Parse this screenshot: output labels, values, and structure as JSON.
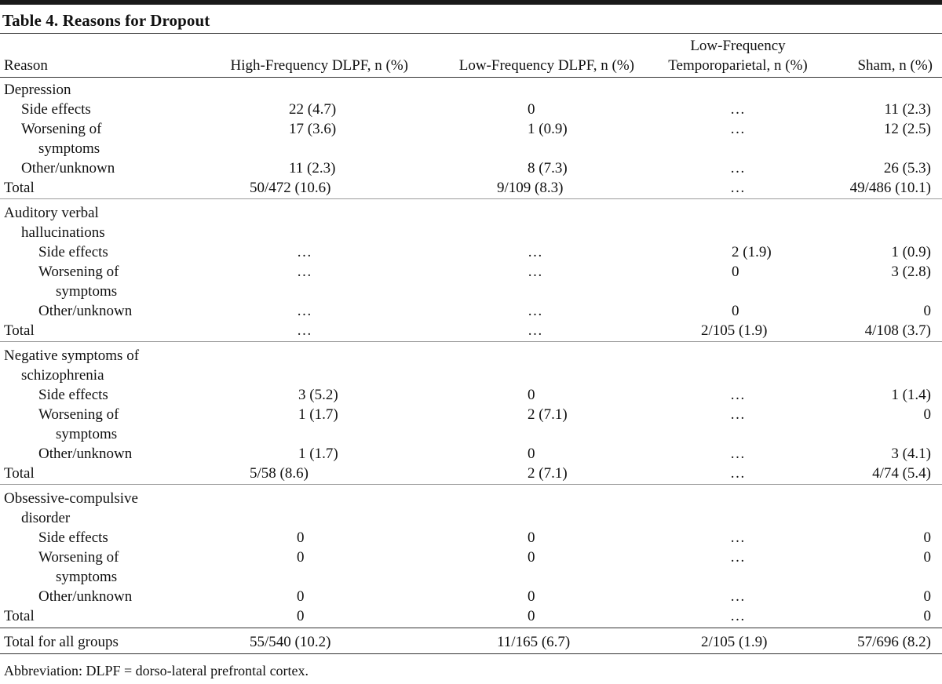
{
  "caption": "Table 4. Reasons for Dropout",
  "headers": {
    "reason": "Reason",
    "col1": "High-Frequency DLPF, n (%)",
    "col2": "Low-Frequency DLPF, n (%)",
    "col3_line1": "Low-Frequency",
    "col3_line2": "Temporoparietal, n (%)",
    "col4": "Sham, n (%)"
  },
  "rows": [
    {
      "label": "Depression",
      "indent": 0,
      "v": [
        "",
        "",
        "",
        ""
      ]
    },
    {
      "label": "Side effects",
      "indent": 1,
      "v": [
        "22 (4.7)",
        "0",
        "…",
        "11 (2.3)"
      ]
    },
    {
      "label": "Worsening of",
      "indent": 1,
      "v": [
        "17 (3.6)",
        "1 (0.9)",
        "…",
        "12 (2.5)"
      ]
    },
    {
      "label": "symptoms",
      "indent": 2,
      "v": [
        "",
        "",
        "",
        ""
      ]
    },
    {
      "label": "Other/unknown",
      "indent": 1,
      "v": [
        "11 (2.3)",
        "8 (7.3)",
        "…",
        "26 (5.3)"
      ]
    },
    {
      "label": "Total",
      "indent": 0,
      "v": [
        "50/472 (10.6)",
        "9/109 (8.3)",
        "…",
        "49/486 (10.1)"
      ]
    },
    {
      "label": "Auditory verbal",
      "indent": 0,
      "v": [
        "",
        "",
        "",
        ""
      ]
    },
    {
      "label": "hallucinations",
      "indent": 1,
      "v": [
        "",
        "",
        "",
        ""
      ]
    },
    {
      "label": "Side effects",
      "indent": 2,
      "v": [
        "…",
        "…",
        "2 (1.9)",
        "1 (0.9)"
      ]
    },
    {
      "label": "Worsening of",
      "indent": 2,
      "v": [
        "…",
        "…",
        "0",
        "3 (2.8)"
      ]
    },
    {
      "label": "symptoms",
      "indent": 3,
      "v": [
        "",
        "",
        "",
        ""
      ]
    },
    {
      "label": "Other/unknown",
      "indent": 2,
      "v": [
        "…",
        "…",
        "0",
        "0"
      ]
    },
    {
      "label": "Total",
      "indent": 0,
      "v": [
        "…",
        "…",
        "2/105 (1.9)",
        "4/108 (3.7)"
      ]
    },
    {
      "label": "Negative symptoms of",
      "indent": 0,
      "v": [
        "",
        "",
        "",
        ""
      ]
    },
    {
      "label": "schizophrenia",
      "indent": 1,
      "v": [
        "",
        "",
        "",
        ""
      ]
    },
    {
      "label": "Side effects",
      "indent": 2,
      "v": [
        "3 (5.2)",
        "0",
        "…",
        "1 (1.4)"
      ]
    },
    {
      "label": "Worsening of",
      "indent": 2,
      "v": [
        "1 (1.7)",
        "2 (7.1)",
        "…",
        "0"
      ]
    },
    {
      "label": "symptoms",
      "indent": 3,
      "v": [
        "",
        "",
        "",
        ""
      ]
    },
    {
      "label": "Other/unknown",
      "indent": 2,
      "v": [
        "1 (1.7)",
        "0",
        "…",
        "3 (4.1)"
      ]
    },
    {
      "label": "Total",
      "indent": 0,
      "v": [
        "5/58 (8.6)",
        "2 (7.1)",
        "…",
        "4/74 (5.4)"
      ]
    },
    {
      "label": "Obsessive-compulsive",
      "indent": 0,
      "v": [
        "",
        "",
        "",
        ""
      ]
    },
    {
      "label": "disorder",
      "indent": 1,
      "v": [
        "",
        "",
        "",
        ""
      ]
    },
    {
      "label": "Side effects",
      "indent": 2,
      "v": [
        "0",
        "0",
        "…",
        "0"
      ]
    },
    {
      "label": "Worsening of",
      "indent": 2,
      "v": [
        "0",
        "0",
        "…",
        "0"
      ]
    },
    {
      "label": "symptoms",
      "indent": 3,
      "v": [
        "",
        "",
        "",
        ""
      ]
    },
    {
      "label": "Other/unknown",
      "indent": 2,
      "v": [
        "0",
        "0",
        "…",
        "0"
      ]
    },
    {
      "label": "Total",
      "indent": 0,
      "v": [
        "0",
        "0",
        "…",
        "0"
      ]
    },
    {
      "label": "Total for all groups",
      "indent": 0,
      "v": [
        "55/540 (10.2)",
        "11/165 (6.7)",
        "2/105 (1.9)",
        "57/696 (8.2)"
      ]
    }
  ],
  "footnote": "Abbreviation: DLPF = dorso-lateral prefrontal cortex."
}
